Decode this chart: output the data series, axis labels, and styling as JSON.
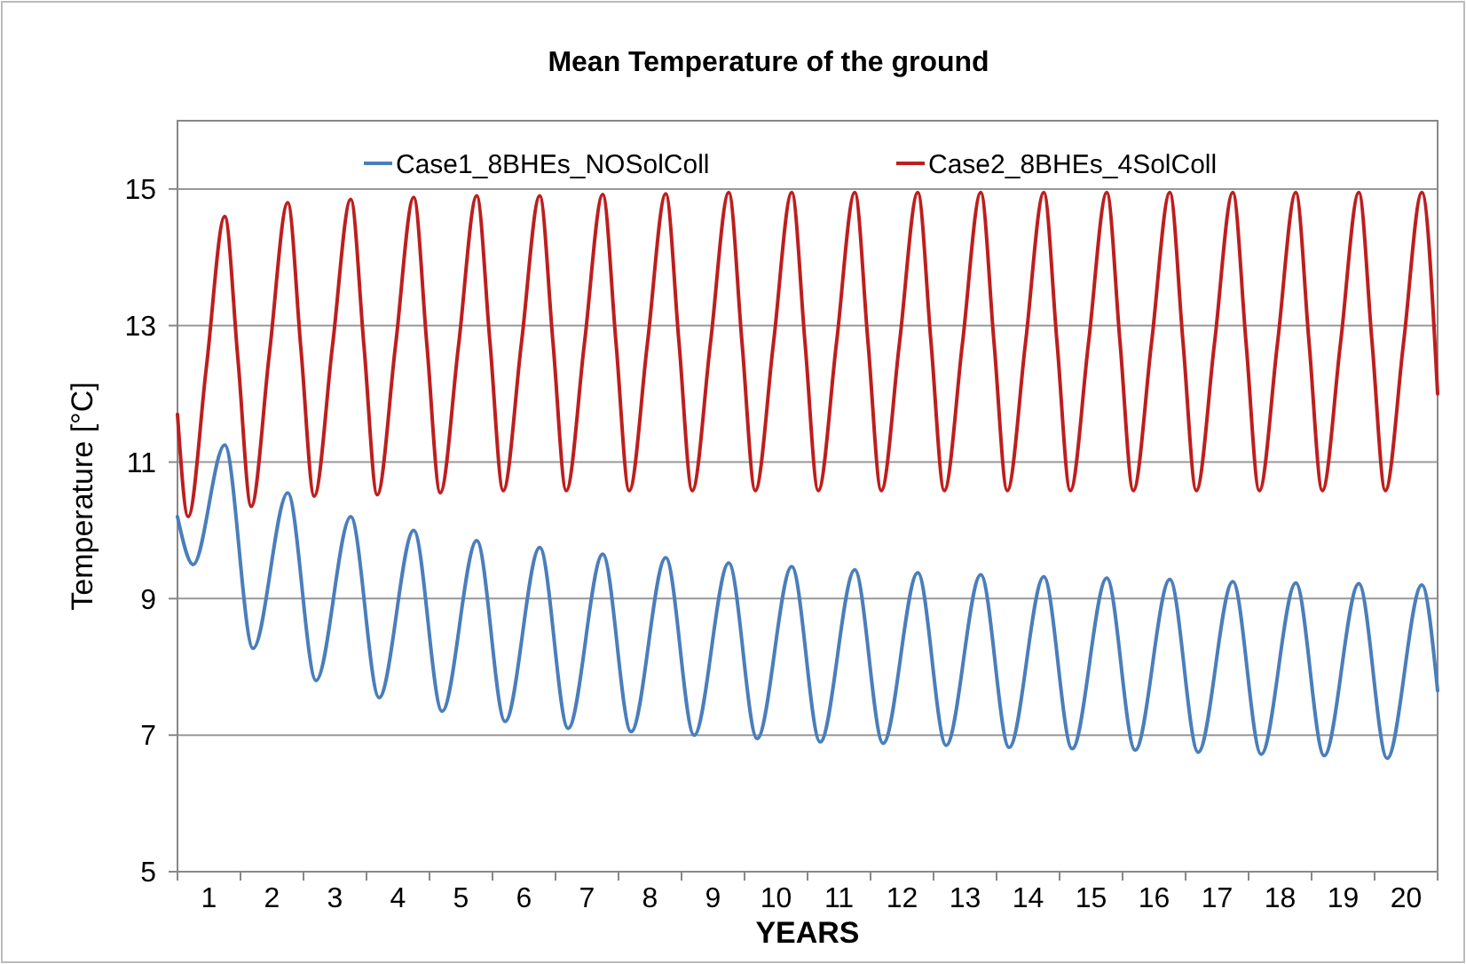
{
  "chart_data": {
    "type": "line",
    "title": "Mean Temperature of the ground",
    "xlabel": "YEARS",
    "ylabel": "Temperature [°C]",
    "xlim": [
      0,
      20
    ],
    "xticks": [
      {
        "value": 0,
        "label": null
      },
      {
        "value": 0.5,
        "label": "1"
      },
      {
        "value": 1,
        "label": null
      },
      {
        "value": 1.5,
        "label": "2"
      },
      {
        "value": 2,
        "label": null
      },
      {
        "value": 2.5,
        "label": "3"
      },
      {
        "value": 3,
        "label": null
      },
      {
        "value": 3.5,
        "label": "4"
      },
      {
        "value": 4,
        "label": null
      },
      {
        "value": 4.5,
        "label": "5"
      },
      {
        "value": 5,
        "label": null
      },
      {
        "value": 5.5,
        "label": "6"
      },
      {
        "value": 6,
        "label": null
      },
      {
        "value": 6.5,
        "label": "7"
      },
      {
        "value": 7,
        "label": null
      },
      {
        "value": 7.5,
        "label": "8"
      },
      {
        "value": 8,
        "label": null
      },
      {
        "value": 8.5,
        "label": "9"
      },
      {
        "value": 9,
        "label": null
      },
      {
        "value": 9.5,
        "label": "10"
      },
      {
        "value": 10,
        "label": null
      },
      {
        "value": 10.5,
        "label": "11"
      },
      {
        "value": 11,
        "label": null
      },
      {
        "value": 11.5,
        "label": "12"
      },
      {
        "value": 12,
        "label": null
      },
      {
        "value": 12.5,
        "label": "13"
      },
      {
        "value": 13,
        "label": null
      },
      {
        "value": 13.5,
        "label": "14"
      },
      {
        "value": 14,
        "label": null
      },
      {
        "value": 14.5,
        "label": "15"
      },
      {
        "value": 15,
        "label": null
      },
      {
        "value": 15.5,
        "label": "16"
      },
      {
        "value": 16,
        "label": null
      },
      {
        "value": 16.5,
        "label": "17"
      },
      {
        "value": 17,
        "label": null
      },
      {
        "value": 17.5,
        "label": "18"
      },
      {
        "value": 18,
        "label": null
      },
      {
        "value": 18.5,
        "label": "19"
      },
      {
        "value": 19,
        "label": null
      },
      {
        "value": 19.5,
        "label": "20"
      },
      {
        "value": 20,
        "label": null
      }
    ],
    "ylim": [
      5,
      16
    ],
    "yticks": [
      5,
      7,
      9,
      11,
      13,
      15
    ],
    "grid": "y",
    "legend": "top",
    "marker": "none",
    "line_style": "solid",
    "series": [
      {
        "name": "Case1_8BHEs_NOSolColl",
        "color": "#4a7ebb",
        "x": [
          0,
          0.25,
          0.75,
          1.2,
          1.75,
          2.2,
          2.75,
          3.2,
          3.75,
          4.2,
          4.75,
          5.2,
          5.75,
          6.2,
          6.75,
          7.2,
          7.75,
          8.2,
          8.75,
          9.2,
          9.75,
          10.2,
          10.75,
          11.2,
          11.75,
          12.2,
          12.75,
          13.2,
          13.75,
          14.2,
          14.75,
          15.2,
          15.75,
          16.2,
          16.75,
          17.2,
          17.75,
          18.2,
          18.75,
          19.2,
          19.75,
          20
        ],
        "values": [
          10.2,
          9.5,
          11.25,
          8.27,
          10.55,
          7.8,
          10.2,
          7.55,
          10.0,
          7.35,
          9.85,
          7.2,
          9.75,
          7.1,
          9.65,
          7.05,
          9.6,
          7.0,
          9.52,
          6.95,
          9.47,
          6.9,
          9.42,
          6.88,
          9.38,
          6.85,
          9.35,
          6.82,
          9.32,
          6.8,
          9.3,
          6.78,
          9.28,
          6.75,
          9.25,
          6.72,
          9.23,
          6.7,
          9.22,
          6.66,
          9.2,
          7.65
        ]
      },
      {
        "name": "Case2_8BHEs_4SolColl",
        "color": "#be1e1e",
        "x": [
          0,
          0.17,
          0.46,
          0.75,
          0.96,
          1.17,
          1.46,
          1.75,
          1.96,
          2.17,
          2.46,
          2.75,
          2.96,
          3.17,
          3.46,
          3.75,
          3.96,
          4.17,
          4.46,
          4.75,
          4.96,
          5.17,
          5.46,
          5.75,
          5.96,
          6.17,
          6.46,
          6.75,
          6.96,
          7.17,
          7.46,
          7.75,
          7.96,
          8.17,
          8.46,
          8.75,
          8.96,
          9.17,
          9.46,
          9.75,
          9.96,
          10.17,
          10.46,
          10.75,
          10.96,
          11.17,
          11.46,
          11.75,
          11.96,
          12.17,
          12.46,
          12.75,
          12.96,
          13.17,
          13.46,
          13.75,
          13.96,
          14.17,
          14.46,
          14.75,
          14.96,
          15.17,
          15.46,
          15.75,
          15.96,
          16.17,
          16.46,
          16.75,
          16.96,
          17.17,
          17.46,
          17.75,
          17.96,
          18.17,
          18.46,
          18.75,
          18.96,
          19.17,
          19.46,
          19.75,
          20
        ],
        "values": [
          11.7,
          10.2,
          12.4,
          14.6,
          12.5,
          10.35,
          12.6,
          14.8,
          12.65,
          10.5,
          12.7,
          14.85,
          12.7,
          10.52,
          12.7,
          14.88,
          12.7,
          10.55,
          12.7,
          14.9,
          12.75,
          10.58,
          12.75,
          14.9,
          12.75,
          10.58,
          12.75,
          14.92,
          12.75,
          10.58,
          12.75,
          14.93,
          12.75,
          10.58,
          12.75,
          14.95,
          12.75,
          10.58,
          12.75,
          14.95,
          12.75,
          10.58,
          12.75,
          14.95,
          12.75,
          10.58,
          12.75,
          14.95,
          12.75,
          10.58,
          12.75,
          14.95,
          12.75,
          10.58,
          12.75,
          14.95,
          12.75,
          10.58,
          12.75,
          14.95,
          12.75,
          10.58,
          12.75,
          14.95,
          12.75,
          10.58,
          12.75,
          14.95,
          12.75,
          10.58,
          12.75,
          14.95,
          12.75,
          10.58,
          12.75,
          14.95,
          12.75,
          10.58,
          12.75,
          14.95,
          12.0
        ]
      }
    ]
  }
}
